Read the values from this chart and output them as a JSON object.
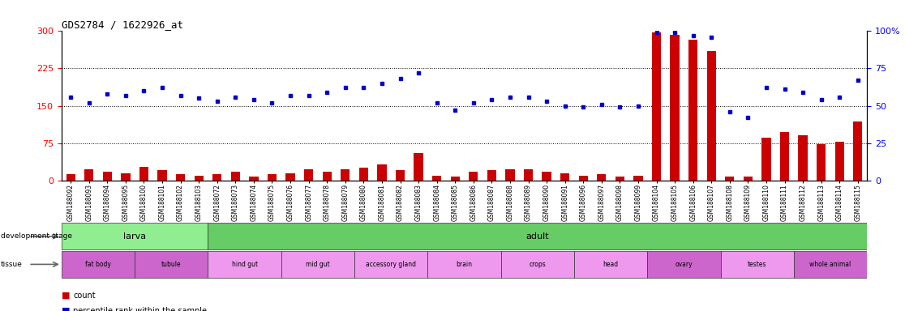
{
  "title": "GDS2784 / 1622926_at",
  "samples": [
    "GSM188092",
    "GSM188093",
    "GSM188094",
    "GSM188095",
    "GSM188100",
    "GSM188101",
    "GSM188102",
    "GSM188103",
    "GSM188072",
    "GSM188073",
    "GSM188074",
    "GSM188075",
    "GSM188076",
    "GSM188077",
    "GSM188078",
    "GSM188079",
    "GSM188080",
    "GSM188081",
    "GSM188082",
    "GSM188083",
    "GSM188084",
    "GSM188085",
    "GSM188086",
    "GSM188087",
    "GSM188088",
    "GSM188089",
    "GSM188090",
    "GSM188091",
    "GSM188096",
    "GSM188097",
    "GSM188098",
    "GSM188099",
    "GSM188104",
    "GSM188105",
    "GSM188106",
    "GSM188107",
    "GSM188108",
    "GSM188109",
    "GSM188110",
    "GSM188111",
    "GSM188112",
    "GSM188113",
    "GSM188114",
    "GSM188115"
  ],
  "count": [
    12,
    22,
    17,
    15,
    28,
    20,
    12,
    10,
    12,
    18,
    8,
    12,
    15,
    22,
    18,
    22,
    25,
    32,
    20,
    55,
    10,
    8,
    18,
    20,
    22,
    22,
    18,
    15,
    10,
    12,
    8,
    10,
    298,
    293,
    283,
    260,
    8,
    8,
    85,
    98,
    90,
    72,
    78,
    118
  ],
  "percentile": [
    56,
    52,
    58,
    57,
    60,
    62,
    57,
    55,
    53,
    56,
    54,
    52,
    57,
    57,
    59,
    62,
    62,
    65,
    68,
    72,
    52,
    47,
    52,
    54,
    56,
    56,
    53,
    50,
    49,
    51,
    49,
    50,
    99,
    99,
    97,
    96,
    46,
    42,
    62,
    61,
    59,
    54,
    56,
    67
  ],
  "dev_stage_groups": [
    {
      "label": "larva",
      "start": 0,
      "end": 8,
      "color": "#90EE90"
    },
    {
      "label": "adult",
      "start": 8,
      "end": 44,
      "color": "#66CC66"
    }
  ],
  "tissue_groups": [
    {
      "label": "fat body",
      "start": 0,
      "end": 4,
      "color": "#CC66CC"
    },
    {
      "label": "tubule",
      "start": 4,
      "end": 8,
      "color": "#CC66CC"
    },
    {
      "label": "hind gut",
      "start": 8,
      "end": 12,
      "color": "#EE99EE"
    },
    {
      "label": "mid gut",
      "start": 12,
      "end": 16,
      "color": "#EE99EE"
    },
    {
      "label": "accessory gland",
      "start": 16,
      "end": 20,
      "color": "#EE99EE"
    },
    {
      "label": "brain",
      "start": 20,
      "end": 24,
      "color": "#EE99EE"
    },
    {
      "label": "crops",
      "start": 24,
      "end": 28,
      "color": "#EE99EE"
    },
    {
      "label": "head",
      "start": 28,
      "end": 32,
      "color": "#EE99EE"
    },
    {
      "label": "ovary",
      "start": 32,
      "end": 36,
      "color": "#CC66CC"
    },
    {
      "label": "testes",
      "start": 36,
      "end": 40,
      "color": "#EE99EE"
    },
    {
      "label": "whole animal",
      "start": 40,
      "end": 44,
      "color": "#CC66CC"
    }
  ],
  "bar_color": "#CC0000",
  "dot_color": "#0000CC",
  "left_ylim": [
    0,
    300
  ],
  "right_ylim": [
    0,
    100
  ],
  "left_yticks": [
    0,
    75,
    150,
    225,
    300
  ],
  "right_yticks": [
    0,
    25,
    50,
    75,
    100
  ],
  "right_yticklabels": [
    "0",
    "25",
    "50",
    "75",
    "100%"
  ]
}
